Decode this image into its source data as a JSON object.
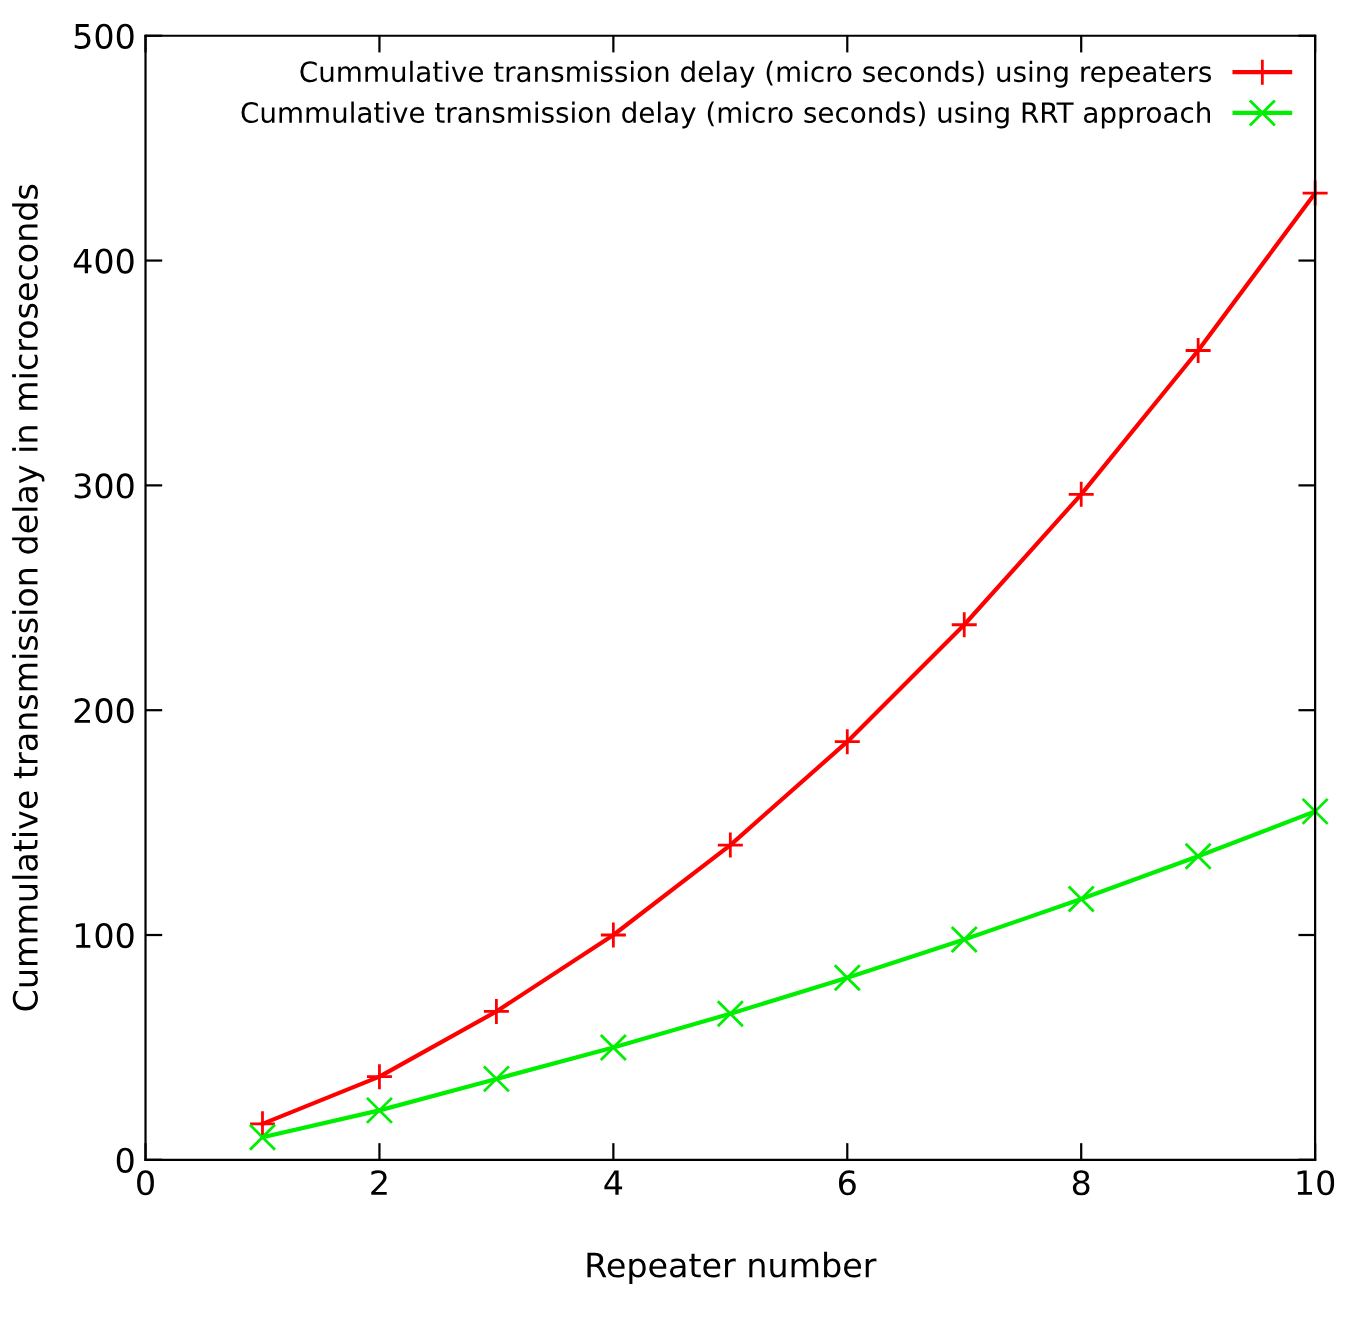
{
  "chart_data": {
    "type": "line",
    "xlabel": "Repeater number",
    "ylabel": "Cummulative transmission delay in microseconds",
    "x": [
      1,
      2,
      3,
      4,
      5,
      6,
      7,
      8,
      9,
      10
    ],
    "series": [
      {
        "name": "Cummulative transmission delay (micro seconds) using repeaters",
        "color": "#ff0000",
        "marker": "cross",
        "values": [
          16,
          37,
          66,
          100,
          140,
          186,
          238,
          296,
          360,
          430
        ]
      },
      {
        "name": "Cummulative transmission delay (micro seconds) using RRT approach",
        "color": "#00ee00",
        "marker": "x",
        "values": [
          10,
          22,
          36,
          50,
          65,
          81,
          98,
          116,
          135,
          155
        ]
      }
    ],
    "xlim": [
      0,
      10
    ],
    "xticks": [
      0,
      2,
      4,
      6,
      8,
      10
    ],
    "ylim": [
      0,
      500
    ],
    "yticks": [
      0,
      100,
      200,
      300,
      400,
      500
    ],
    "grid": false,
    "legend": "top right",
    "line_style": "solid"
  }
}
